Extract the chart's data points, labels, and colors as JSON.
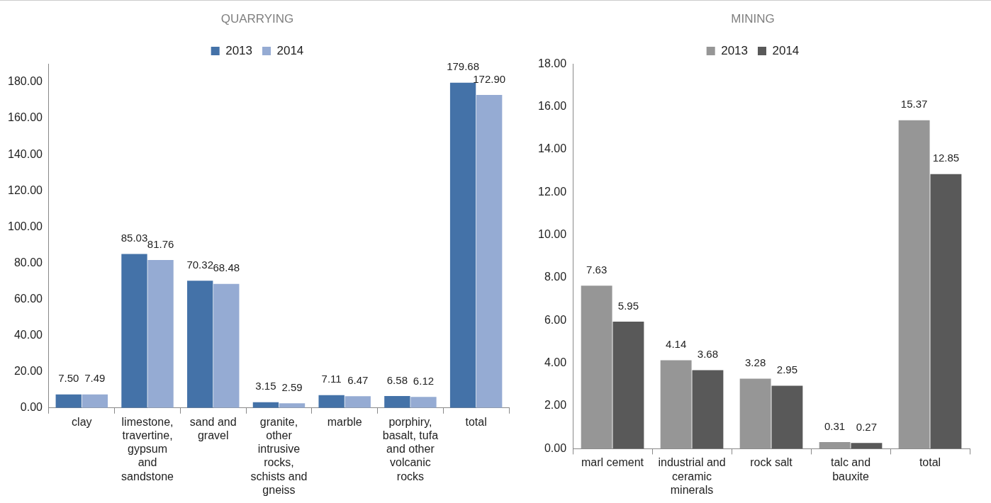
{
  "chart_data": [
    {
      "type": "bar",
      "title": "QUARRYING",
      "categories": [
        "clay",
        "limestone, travertine, gypsum and sandstone",
        "sand and gravel",
        "granite, other intrusive rocks, schists and gneiss",
        "marble",
        "porphiry, basalt, tufa and other volcanic rocks",
        "total"
      ],
      "series": [
        {
          "name": "2013",
          "color": "#4472a8",
          "values": [
            7.5,
            85.03,
            70.32,
            3.15,
            7.11,
            6.58,
            179.68
          ],
          "value_labels": [
            "7.50",
            "85.03",
            "70.32",
            "3.15",
            "7.11",
            "6.58",
            "179.68"
          ]
        },
        {
          "name": "2014",
          "color": "#95abd3",
          "values": [
            7.49,
            81.76,
            68.48,
            2.59,
            6.47,
            6.12,
            172.9
          ],
          "value_labels": [
            "7.49",
            "81.76",
            "68.48",
            "2.59",
            "6.47",
            "6.12",
            "172.90"
          ]
        }
      ],
      "ylim": [
        0,
        190
      ],
      "yticks": [
        {
          "value": 0,
          "label": "0.00"
        },
        {
          "value": 20,
          "label": "20.00"
        },
        {
          "value": 40,
          "label": "40.00"
        },
        {
          "value": 60,
          "label": "60.00"
        },
        {
          "value": 80,
          "label": "80.00"
        },
        {
          "value": 100,
          "label": "100.00"
        },
        {
          "value": 120,
          "label": "120.00"
        },
        {
          "value": 140,
          "label": "140.00"
        },
        {
          "value": 160,
          "label": "160.00"
        },
        {
          "value": 180,
          "label": "180.00"
        }
      ],
      "grid": false,
      "legend": "top"
    },
    {
      "type": "bar",
      "title": "MINING",
      "categories": [
        "marl cement",
        "industrial and ceramic minerals",
        "rock salt",
        "talc and bauxite",
        "total"
      ],
      "series": [
        {
          "name": "2013",
          "color": "#969696",
          "values": [
            7.63,
            4.14,
            3.28,
            0.31,
            15.37
          ],
          "value_labels": [
            "7.63",
            "4.14",
            "3.28",
            "0.31",
            "15.37"
          ]
        },
        {
          "name": "2014",
          "color": "#595959",
          "values": [
            5.95,
            3.68,
            2.95,
            0.27,
            12.85
          ],
          "value_labels": [
            "5.95",
            "3.68",
            "2.95",
            "0.27",
            "12.85"
          ]
        }
      ],
      "ylim": [
        0,
        18
      ],
      "yticks": [
        {
          "value": 0,
          "label": "0.00"
        },
        {
          "value": 2,
          "label": "2.00"
        },
        {
          "value": 4,
          "label": "4.00"
        },
        {
          "value": 6,
          "label": "6.00"
        },
        {
          "value": 8,
          "label": "8.00"
        },
        {
          "value": 10,
          "label": "10.00"
        },
        {
          "value": 12,
          "label": "12.00"
        },
        {
          "value": 14,
          "label": "14.00"
        },
        {
          "value": 16,
          "label": "16.00"
        },
        {
          "value": 18,
          "label": "18.00"
        }
      ],
      "grid": false,
      "legend": "top"
    }
  ]
}
